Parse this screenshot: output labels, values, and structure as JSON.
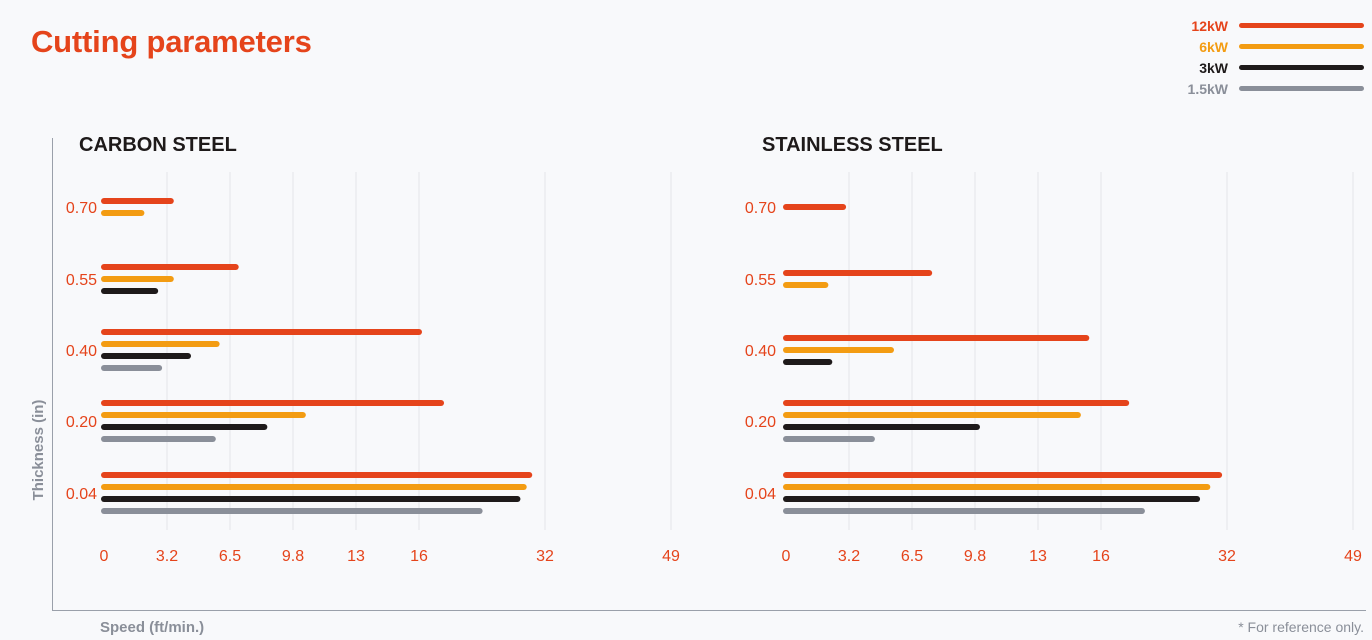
{
  "title": "Cutting parameters",
  "legend": [
    {
      "label": "12kW",
      "color": "#e5441b"
    },
    {
      "label": "6kW",
      "color": "#f39c12"
    },
    {
      "label": "3kW",
      "color": "#1e1a1a"
    },
    {
      "label": "1.5kW",
      "color": "#8a8f99"
    }
  ],
  "y_axis_label": "Thickness (in)",
  "x_axis_label": "Speed (ft/min.)",
  "footnote": "* For reference only.",
  "chart_data": [
    {
      "type": "bar",
      "title": "CARBON STEEL",
      "ylabel": "Thickness (in)",
      "xlabel": "Speed (ft/min.)",
      "categories": [
        "0.70",
        "0.55",
        "0.40",
        "0.20",
        "0.04"
      ],
      "x_ticks": [
        "0",
        "3.2",
        "6.5",
        "9.8",
        "13",
        "16",
        "32",
        "49"
      ],
      "series": [
        {
          "name": "12kW",
          "color": "#e5441b",
          "values": [
            3.4,
            6.8,
            16,
            18.8,
            30
          ]
        },
        {
          "name": "6kW",
          "color": "#f39c12",
          "values": [
            1.9,
            3.4,
            5.8,
            10.3,
            29.3
          ]
        },
        {
          "name": "3kW",
          "color": "#1e1a1a",
          "values": [
            null,
            2.6,
            4.3,
            8.3,
            28.5
          ]
        },
        {
          "name": "1.5kW",
          "color": "#8a8f99",
          "values": [
            null,
            null,
            2.8,
            5.6,
            23.7
          ]
        }
      ]
    },
    {
      "type": "bar",
      "title": "STAINLESS STEEL",
      "ylabel": "Thickness (in)",
      "xlabel": "Speed (ft/min.)",
      "categories": [
        "0.70",
        "0.55",
        "0.40",
        "0.20",
        "0.04"
      ],
      "x_ticks": [
        "0",
        "3.2",
        "6.5",
        "9.8",
        "13",
        "16",
        "32",
        "49"
      ],
      "series": [
        {
          "name": "12kW",
          "color": "#e5441b",
          "values": [
            2.9,
            7.4,
            15.3,
            19.2,
            31
          ]
        },
        {
          "name": "6kW",
          "color": "#f39c12",
          "values": [
            null,
            2,
            5.4,
            14.9,
            29.5
          ]
        },
        {
          "name": "3kW",
          "color": "#1e1a1a",
          "values": [
            null,
            null,
            2.2,
            9.9,
            28.2
          ]
        },
        {
          "name": "1.5kW",
          "color": "#8a8f99",
          "values": [
            null,
            null,
            null,
            4.4,
            21.2
          ]
        }
      ]
    }
  ]
}
